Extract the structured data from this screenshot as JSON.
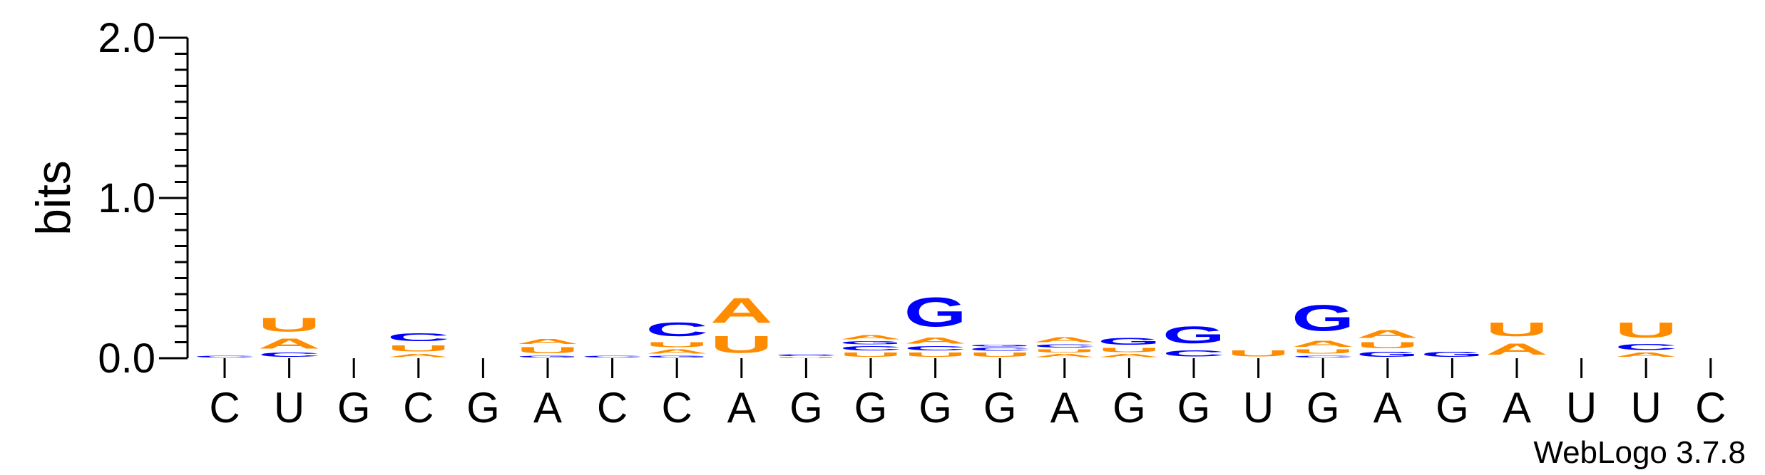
{
  "chart_data": {
    "type": "sequence-logo",
    "ylabel": "bits",
    "ylim": [
      0,
      2.0
    ],
    "yticks": [
      "0.0",
      "1.0",
      "2.0"
    ],
    "categories": [
      "C",
      "U",
      "G",
      "C",
      "G",
      "A",
      "C",
      "C",
      "A",
      "G",
      "G",
      "G",
      "G",
      "A",
      "G",
      "G",
      "U",
      "G",
      "A",
      "G",
      "A",
      "U",
      "U",
      "C"
    ],
    "colors": {
      "A": "#ff8c00",
      "U": "#ff8c00",
      "C": "#0000ff",
      "G": "#0000ff"
    },
    "stacks": [
      [
        {
          "letter": "C",
          "bits": 0.02
        }
      ],
      [
        {
          "letter": "C",
          "bits": 0.04
        },
        {
          "letter": "A",
          "bits": 0.1
        },
        {
          "letter": "U",
          "bits": 0.14
        }
      ],
      [],
      [
        {
          "letter": "A",
          "bits": 0.03
        },
        {
          "letter": "U",
          "bits": 0.06
        },
        {
          "letter": "C",
          "bits": 0.08
        }
      ],
      [],
      [
        {
          "letter": "G",
          "bits": 0.02
        },
        {
          "letter": "U",
          "bits": 0.06
        },
        {
          "letter": "A",
          "bits": 0.05
        }
      ],
      [
        {
          "letter": "C",
          "bits": 0.02
        }
      ],
      [
        {
          "letter": "G",
          "bits": 0.02
        },
        {
          "letter": "A",
          "bits": 0.04
        },
        {
          "letter": "U",
          "bits": 0.05
        },
        {
          "letter": "C",
          "bits": 0.14
        }
      ],
      [
        {
          "letter": "U",
          "bits": 0.17
        },
        {
          "letter": "A",
          "bits": 0.25
        }
      ],
      [
        {
          "letter": "U",
          "bits": 0.01
        },
        {
          "letter": "C",
          "bits": 0.02
        }
      ],
      [
        {
          "letter": "U",
          "bits": 0.04
        },
        {
          "letter": "C",
          "bits": 0.04
        },
        {
          "letter": "G",
          "bits": 0.03
        },
        {
          "letter": "A",
          "bits": 0.04
        }
      ],
      [
        {
          "letter": "U",
          "bits": 0.04
        },
        {
          "letter": "C",
          "bits": 0.04
        },
        {
          "letter": "A",
          "bits": 0.06
        },
        {
          "letter": "G",
          "bits": 0.29
        }
      ],
      [
        {
          "letter": "U",
          "bits": 0.04
        },
        {
          "letter": "C",
          "bits": 0.03
        },
        {
          "letter": "G",
          "bits": 0.02
        }
      ],
      [
        {
          "letter": "A",
          "bits": 0.03
        },
        {
          "letter": "U",
          "bits": 0.03
        },
        {
          "letter": "C",
          "bits": 0.03
        },
        {
          "letter": "A",
          "bits": 0.05
        }
      ],
      [
        {
          "letter": "A",
          "bits": 0.03
        },
        {
          "letter": "U",
          "bits": 0.04
        },
        {
          "letter": "G",
          "bits": 0.07
        }
      ],
      [
        {
          "letter": "C",
          "bits": 0.06
        },
        {
          "letter": "G",
          "bits": 0.17
        }
      ],
      [
        {
          "letter": "U",
          "bits": 0.06
        }
      ],
      [
        {
          "letter": "C",
          "bits": 0.02
        },
        {
          "letter": "U",
          "bits": 0.04
        },
        {
          "letter": "A",
          "bits": 0.06
        },
        {
          "letter": "G",
          "bits": 0.26
        }
      ],
      [
        {
          "letter": "G",
          "bits": 0.05
        },
        {
          "letter": "U",
          "bits": 0.06
        },
        {
          "letter": "A",
          "bits": 0.08
        }
      ],
      [
        {
          "letter": "G",
          "bits": 0.05
        }
      ],
      [
        {
          "letter": "A",
          "bits": 0.11
        },
        {
          "letter": "U",
          "bits": 0.14
        }
      ],
      [],
      [
        {
          "letter": "A",
          "bits": 0.04
        },
        {
          "letter": "C",
          "bits": 0.06
        },
        {
          "letter": "U",
          "bits": 0.15
        }
      ],
      []
    ]
  },
  "watermark": "WebLogo 3.7.8"
}
